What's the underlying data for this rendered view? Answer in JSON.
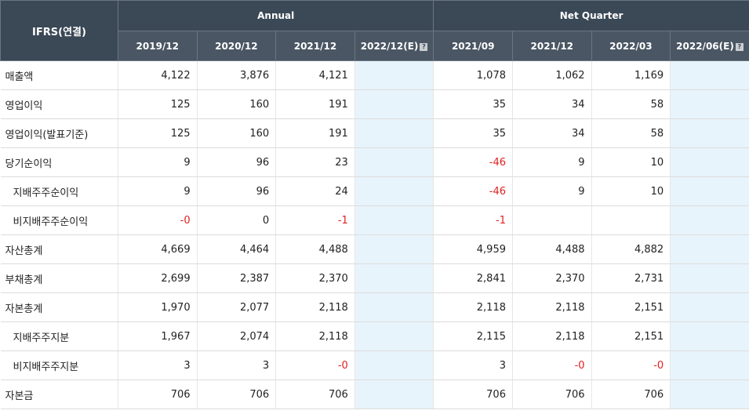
{
  "header": {
    "label": "IFRS(연결)",
    "annual": "Annual",
    "quarter": "Net Quarter",
    "annual_periods": [
      "2019/12",
      "2020/12",
      "2021/12",
      "2022/12(E)"
    ],
    "quarter_periods": [
      "2021/09",
      "2021/12",
      "2022/03",
      "2022/06(E)"
    ],
    "help_icon": "question-icon"
  },
  "rows": [
    {
      "label": "매출액",
      "sub": false,
      "annual": [
        "4,122",
        "3,876",
        "4,121",
        ""
      ],
      "quarter": [
        "1,078",
        "1,062",
        "1,169",
        ""
      ]
    },
    {
      "label": "영업이익",
      "sub": false,
      "annual": [
        "125",
        "160",
        "191",
        ""
      ],
      "quarter": [
        "35",
        "34",
        "58",
        ""
      ]
    },
    {
      "label": "영업이익(발표기준)",
      "sub": false,
      "annual": [
        "125",
        "160",
        "191",
        ""
      ],
      "quarter": [
        "35",
        "34",
        "58",
        ""
      ]
    },
    {
      "label": "당기순이익",
      "sub": false,
      "annual": [
        "9",
        "96",
        "23",
        ""
      ],
      "quarter": [
        "-46",
        "9",
        "10",
        ""
      ]
    },
    {
      "label": "지배주주순이익",
      "sub": true,
      "annual": [
        "9",
        "96",
        "24",
        ""
      ],
      "quarter": [
        "-46",
        "9",
        "10",
        ""
      ]
    },
    {
      "label": "비지배주주순이익",
      "sub": true,
      "annual": [
        "-0",
        "0",
        "-1",
        ""
      ],
      "quarter": [
        "-1",
        "",
        "",
        ""
      ]
    },
    {
      "label": "자산총계",
      "sub": false,
      "annual": [
        "4,669",
        "4,464",
        "4,488",
        ""
      ],
      "quarter": [
        "4,959",
        "4,488",
        "4,882",
        ""
      ]
    },
    {
      "label": "부채총계",
      "sub": false,
      "annual": [
        "2,699",
        "2,387",
        "2,370",
        ""
      ],
      "quarter": [
        "2,841",
        "2,370",
        "2,731",
        ""
      ]
    },
    {
      "label": "자본총계",
      "sub": false,
      "annual": [
        "1,970",
        "2,077",
        "2,118",
        ""
      ],
      "quarter": [
        "2,118",
        "2,118",
        "2,151",
        ""
      ]
    },
    {
      "label": "지배주주지분",
      "sub": true,
      "annual": [
        "1,967",
        "2,074",
        "2,118",
        ""
      ],
      "quarter": [
        "2,115",
        "2,118",
        "2,151",
        ""
      ]
    },
    {
      "label": "비지배주주지분",
      "sub": true,
      "annual": [
        "3",
        "3",
        "-0",
        ""
      ],
      "quarter": [
        "3",
        "-0",
        "-0",
        ""
      ]
    },
    {
      "label": "자본금",
      "sub": false,
      "annual": [
        "706",
        "706",
        "706",
        ""
      ],
      "quarter": [
        "706",
        "706",
        "706",
        ""
      ]
    }
  ]
}
